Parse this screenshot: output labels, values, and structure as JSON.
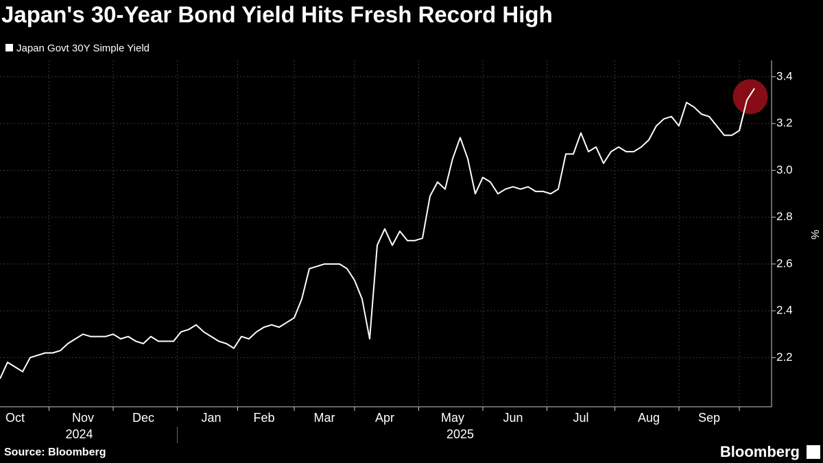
{
  "chart_data": {
    "type": "line",
    "title": "Japan's 30-Year Bond Yield Hits Fresh Record High",
    "source": "Source: Bloomberg",
    "brand": "Bloomberg",
    "y_label": "%",
    "x_group_labels": [
      "2024",
      "2025"
    ],
    "categories": [
      null,
      null,
      "Oct",
      null,
      null,
      null,
      null,
      null,
      null,
      null,
      null,
      "Nov",
      null,
      null,
      null,
      null,
      null,
      null,
      null,
      "Dec",
      null,
      null,
      null,
      null,
      null,
      null,
      null,
      null,
      "Jan",
      null,
      null,
      null,
      null,
      null,
      null,
      "Feb",
      null,
      null,
      null,
      null,
      null,
      null,
      null,
      "Mar",
      null,
      null,
      null,
      null,
      null,
      null,
      null,
      "Apr",
      null,
      null,
      null,
      null,
      null,
      null,
      null,
      null,
      "May",
      null,
      null,
      null,
      null,
      null,
      null,
      null,
      "Jun",
      null,
      null,
      null,
      null,
      null,
      null,
      null,
      null,
      "Jul",
      null,
      null,
      null,
      null,
      null,
      null,
      null,
      null,
      "Aug",
      null,
      null,
      null,
      null,
      null,
      null,
      null,
      "Sep",
      null,
      null,
      null,
      null,
      null,
      null
    ],
    "series": [
      {
        "name": "Japan Govt 30Y Simple Yield",
        "color": "#ffffff",
        "values": [
          2.11,
          2.18,
          2.16,
          2.14,
          2.2,
          2.21,
          2.22,
          2.22,
          2.23,
          2.26,
          2.28,
          2.3,
          2.29,
          2.29,
          2.29,
          2.3,
          2.28,
          2.29,
          2.27,
          2.26,
          2.29,
          2.27,
          2.27,
          2.27,
          2.31,
          2.32,
          2.34,
          2.31,
          2.29,
          2.27,
          2.26,
          2.24,
          2.29,
          2.28,
          2.31,
          2.33,
          2.34,
          2.33,
          2.35,
          2.37,
          2.45,
          2.58,
          2.59,
          2.6,
          2.6,
          2.6,
          2.58,
          2.53,
          2.45,
          2.28,
          2.68,
          2.75,
          2.68,
          2.74,
          2.7,
          2.7,
          2.71,
          2.89,
          2.95,
          2.92,
          3.05,
          3.14,
          3.05,
          2.9,
          2.97,
          2.95,
          2.9,
          2.92,
          2.93,
          2.92,
          2.93,
          2.91,
          2.91,
          2.9,
          2.92,
          3.07,
          3.07,
          3.16,
          3.08,
          3.1,
          3.03,
          3.08,
          3.1,
          3.08,
          3.08,
          3.1,
          3.13,
          3.19,
          3.22,
          3.23,
          3.19,
          3.29,
          3.27,
          3.24,
          3.23,
          3.19,
          3.15,
          3.15,
          3.17,
          3.3,
          3.35
        ]
      }
    ],
    "ylim": [
      1.99,
      3.47
    ],
    "yticks": [
      2.2,
      2.4,
      2.6,
      2.8,
      {
        "value": 3,
        "label": "3.0"
      },
      3.2,
      3.4
    ],
    "grid": true,
    "highlight_last": true,
    "highlight_color": "#b3121f"
  }
}
